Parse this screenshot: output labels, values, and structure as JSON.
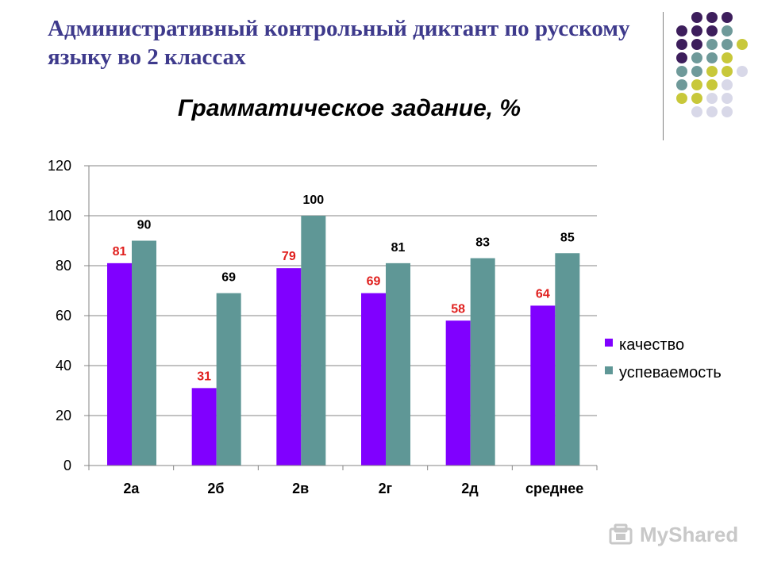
{
  "slide": {
    "title": "Административный контрольный диктант по русскому языку во 2 классах"
  },
  "watermark": {
    "text": "MyShared"
  },
  "colors": {
    "dot_purple": "#3d1e5c",
    "dot_teal": "#6f9a9a",
    "dot_olive": "#c8c83a",
    "dot_lavender": "#d8d8e8",
    "title_color": "#3e3a8c"
  },
  "chart_data": {
    "type": "bar",
    "title": "Грамматическое задание, %",
    "categories": [
      "2а",
      "2б",
      "2в",
      "2г",
      "2д",
      "среднее"
    ],
    "series": [
      {
        "name": "качество",
        "values": [
          81,
          31,
          79,
          69,
          58,
          64
        ],
        "color": "#8000ff",
        "label_color": "#e0201e"
      },
      {
        "name": "успеваемость",
        "values": [
          90,
          69,
          100,
          81,
          83,
          85
        ],
        "color": "#5f9796",
        "label_color": "#000000"
      }
    ],
    "ylim": [
      0,
      120
    ],
    "yticks": [
      0,
      20,
      40,
      60,
      80,
      100,
      120
    ],
    "grid": true,
    "legend": "right",
    "xlabel": "",
    "ylabel": ""
  }
}
